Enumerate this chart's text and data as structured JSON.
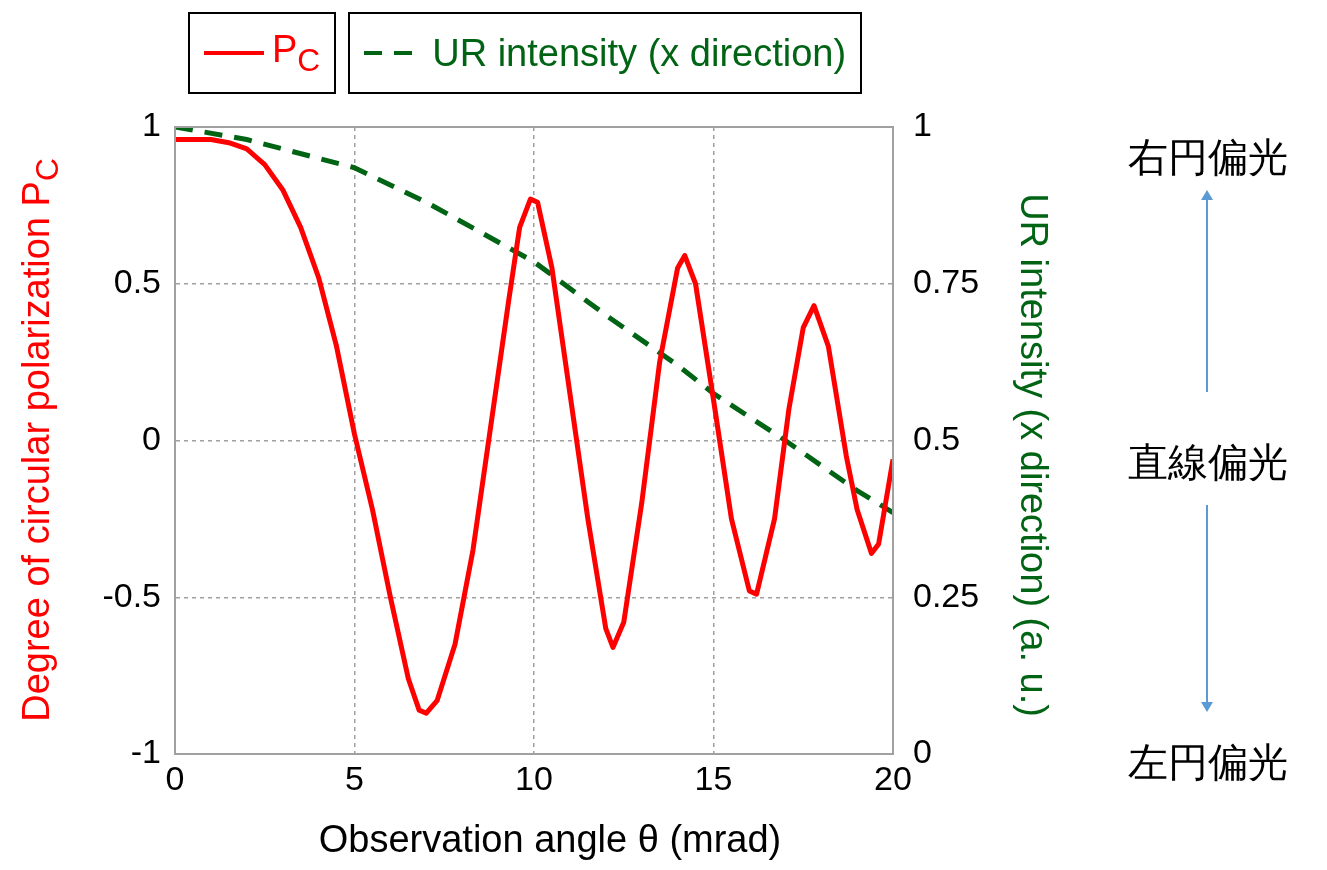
{
  "chart_data": {
    "type": "line",
    "xlabel": "Observation angle  θ (mrad)",
    "ylabel": "Degree of circular polarization P$_{C}$",
    "y2label": "UR intensity (x direction) (a. u.)",
    "xlim": [
      0,
      20
    ],
    "xticks": [
      0,
      5,
      10,
      15,
      20
    ],
    "ylim": [
      -1,
      1
    ],
    "yticks": [
      -1,
      -0.5,
      0,
      0.5,
      1
    ],
    "y2lim": [
      0,
      1
    ],
    "y2ticks": [
      0,
      0.25,
      0.5,
      0.75,
      1
    ],
    "grid": true,
    "legend": "top",
    "marker": "none",
    "annotations": [
      "右円偏光",
      "直線偏光",
      "左円偏光"
    ],
    "series": [
      {
        "name": "P$_{C}$",
        "color": "#ff0000",
        "line_style": "solid",
        "x": [
          0,
          1,
          1.5,
          2,
          2.5,
          3,
          3.5,
          4,
          4.5,
          5,
          5.5,
          6,
          6.5,
          6.8,
          7,
          7.3,
          7.8,
          8.3,
          8.8,
          9.3,
          9.6,
          9.9,
          10.1,
          10.5,
          11,
          11.5,
          12,
          12.2,
          12.5,
          13,
          13.5,
          14,
          14.2,
          14.5,
          15,
          15.5,
          16,
          16.2,
          16.7,
          17.1,
          17.5,
          17.8,
          18.2,
          18.7,
          19,
          19.4,
          19.6,
          20
        ],
        "values": [
          0.96,
          0.96,
          0.95,
          0.93,
          0.88,
          0.8,
          0.68,
          0.52,
          0.3,
          0.02,
          -0.22,
          -0.5,
          -0.76,
          -0.86,
          -0.87,
          -0.83,
          -0.65,
          -0.35,
          0.05,
          0.45,
          0.68,
          0.77,
          0.76,
          0.55,
          0.15,
          -0.25,
          -0.6,
          -0.66,
          -0.58,
          -0.2,
          0.25,
          0.55,
          0.59,
          0.5,
          0.13,
          -0.25,
          -0.48,
          -0.49,
          -0.25,
          0.1,
          0.36,
          0.43,
          0.3,
          -0.05,
          -0.22,
          -0.36,
          -0.33,
          -0.06
        ]
      },
      {
        "name": "UR intensity (x direction)",
        "color": "#006414",
        "line_style": "dashed",
        "axis": "y2",
        "x": [
          0,
          2,
          5,
          7,
          10,
          12,
          14,
          15,
          17,
          19,
          20
        ],
        "values": [
          1,
          0.98,
          0.935,
          0.88,
          0.785,
          0.7,
          0.62,
          0.575,
          0.5,
          0.42,
          0.385
        ]
      }
    ]
  }
}
